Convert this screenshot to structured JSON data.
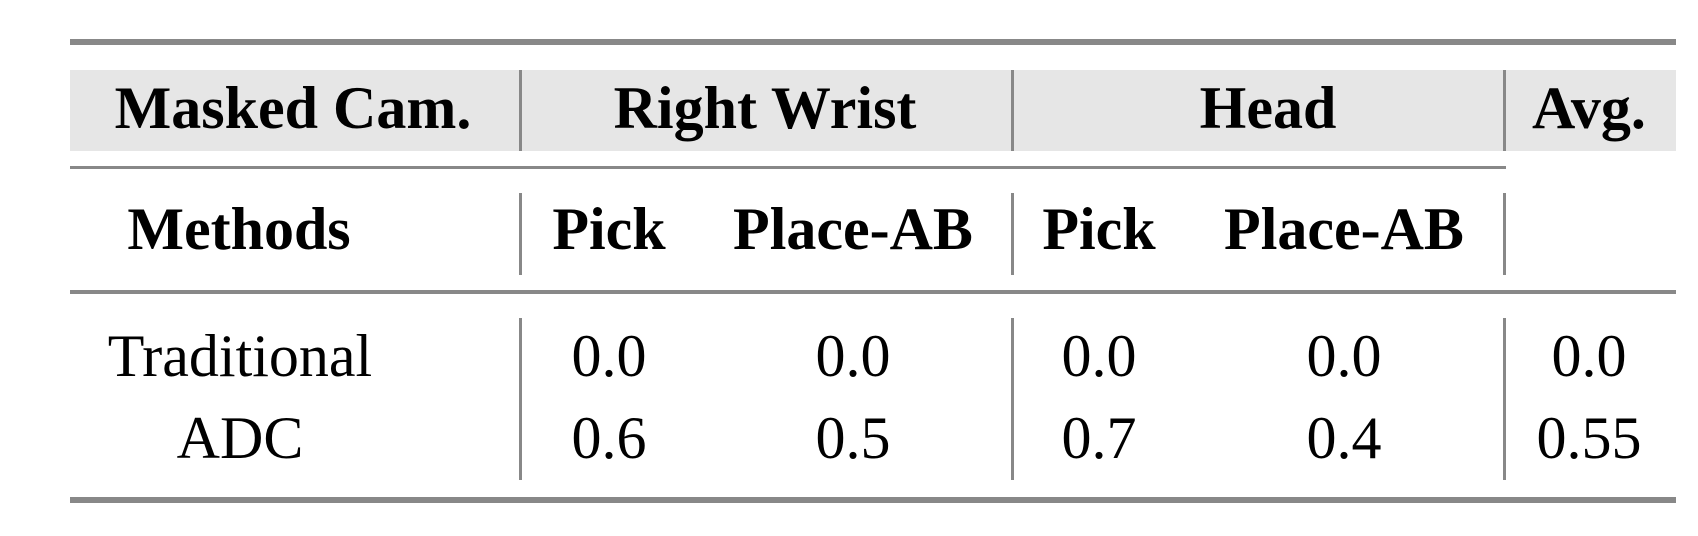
{
  "table": {
    "header_row1": {
      "masked_cam": "Masked Cam.",
      "right_wrist": "Right Wrist",
      "head": "Head",
      "avg": "Avg."
    },
    "header_row2": {
      "methods": "Methods",
      "cols": [
        "Pick",
        "Place-AB",
        "Pick",
        "Place-AB"
      ]
    },
    "rows": [
      {
        "method": "Traditional",
        "values": [
          "0.0",
          "0.0",
          "0.0",
          "0.0",
          "0.0"
        ]
      },
      {
        "method": "ADC",
        "values": [
          "0.6",
          "0.5",
          "0.7",
          "0.4",
          "0.55"
        ]
      }
    ],
    "colors": {
      "rule": "#888888",
      "header_bg": "#e6e6e6"
    }
  }
}
